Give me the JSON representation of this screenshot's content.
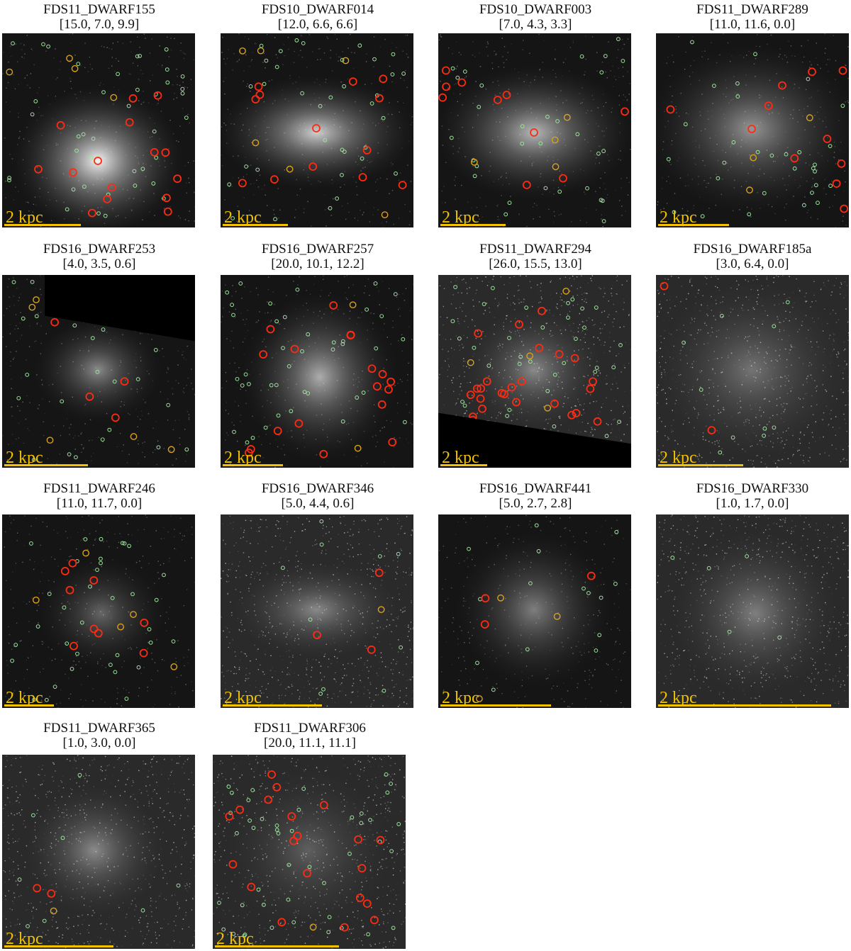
{
  "colors": {
    "scale": "#f2c200",
    "red_circle": "#ff2a12",
    "orange_circle": "#d9a21a",
    "green_source": "#9fe3a0",
    "background": "#ffffff"
  },
  "panels": [
    {
      "name": "FDS11_DWARF155",
      "values": "[15.0, 7.0, 9.9]",
      "scale": "2 kpc"
    },
    {
      "name": "FDS10_DWARF014",
      "values": "[12.0, 6.6, 6.6]",
      "scale": "2 kpc"
    },
    {
      "name": "FDS10_DWARF003",
      "values": "[7.0, 4.3, 3.3]",
      "scale": "2 kpc"
    },
    {
      "name": "FDS11_DWARF289",
      "values": "[11.0, 11.6, 0.0]",
      "scale": "2 kpc"
    },
    {
      "name": "FDS16_DWARF253",
      "values": "[4.0, 3.5, 0.6]",
      "scale": "2 kpc"
    },
    {
      "name": "FDS16_DWARF257",
      "values": "[20.0, 10.1, 12.2]",
      "scale": "2 kpc"
    },
    {
      "name": "FDS11_DWARF294",
      "values": "[26.0, 15.5, 13.0]",
      "scale": "2 kpc"
    },
    {
      "name": "FDS16_DWARF185a",
      "values": "[3.0, 6.4, 0.0]",
      "scale": "2 kpc"
    },
    {
      "name": "FDS11_DWARF246",
      "values": "[11.0, 11.7, 0.0]",
      "scale": "2 kpc"
    },
    {
      "name": "FDS16_DWARF346",
      "values": "[5.0, 4.4, 0.6]",
      "scale": "2 kpc"
    },
    {
      "name": "FDS16_DWARF441",
      "values": "[5.0, 2.7, 2.8]",
      "scale": "2 kpc"
    },
    {
      "name": "FDS16_DWARF330",
      "values": "[1.0, 1.7, 0.0]",
      "scale": "2 kpc"
    },
    {
      "name": "FDS11_DWARF365",
      "values": "[1.0, 3.0, 0.0]",
      "scale": "2 kpc"
    },
    {
      "name": "FDS11_DWARF306",
      "values": "[20.0, 11.1, 11.1]",
      "scale": "2 kpc"
    }
  ]
}
